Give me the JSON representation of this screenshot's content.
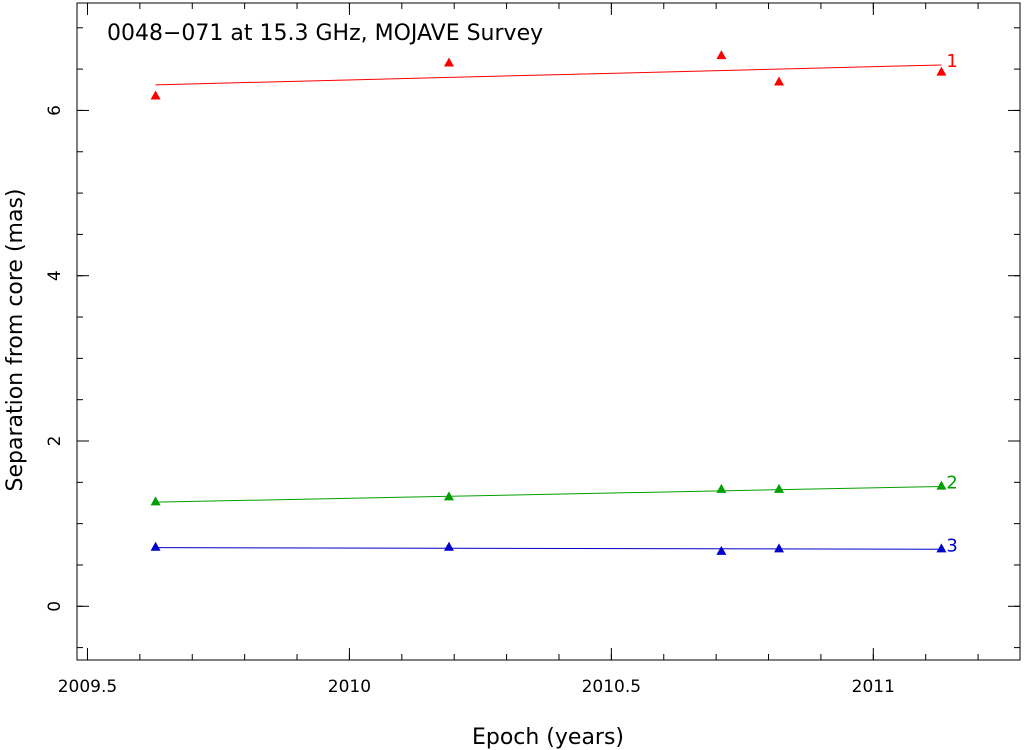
{
  "chart_data": {
    "type": "scatter",
    "title": "0048−071 at 15.3 GHz, MOJAVE Survey",
    "xlabel": "Epoch (years)",
    "ylabel": "Separation from core (mas)",
    "xlim": [
      2009.48,
      2011.28
    ],
    "ylim": [
      -0.65,
      7.3
    ],
    "x_ticks": [
      {
        "value": 2009.5,
        "label": "2009.5"
      },
      {
        "value": 2010,
        "label": "2010"
      },
      {
        "value": 2010.5,
        "label": "2010.5"
      },
      {
        "value": 2011,
        "label": "2011"
      }
    ],
    "y_ticks": [
      {
        "value": 0,
        "label": "0"
      },
      {
        "value": 2,
        "label": "2"
      },
      {
        "value": 4,
        "label": "4"
      },
      {
        "value": 6,
        "label": "6"
      }
    ],
    "x_minor_step": 0.1,
    "y_minor_step": 0.5,
    "grid": false,
    "series": [
      {
        "name": "1",
        "color": "#ff0000",
        "x": [
          2009.63,
          2010.19,
          2010.71,
          2010.82,
          2011.13
        ],
        "y": [
          6.18,
          6.58,
          6.67,
          6.35,
          6.47
        ],
        "fit": {
          "x": [
            2009.63,
            2011.13
          ],
          "y": [
            6.31,
            6.55
          ]
        }
      },
      {
        "name": "2",
        "color": "#00a000",
        "x": [
          2009.63,
          2010.19,
          2010.71,
          2010.82,
          2011.13
        ],
        "y": [
          1.27,
          1.33,
          1.42,
          1.42,
          1.46
        ],
        "fit": {
          "x": [
            2009.63,
            2011.13
          ],
          "y": [
            1.26,
            1.45
          ]
        }
      },
      {
        "name": "3",
        "color": "#0000cc",
        "x": [
          2009.63,
          2010.19,
          2010.71,
          2010.82,
          2011.13
        ],
        "y": [
          0.72,
          0.72,
          0.67,
          0.7,
          0.7
        ],
        "fit": {
          "x": [
            2009.63,
            2011.13
          ],
          "y": [
            0.71,
            0.69
          ]
        }
      }
    ]
  }
}
